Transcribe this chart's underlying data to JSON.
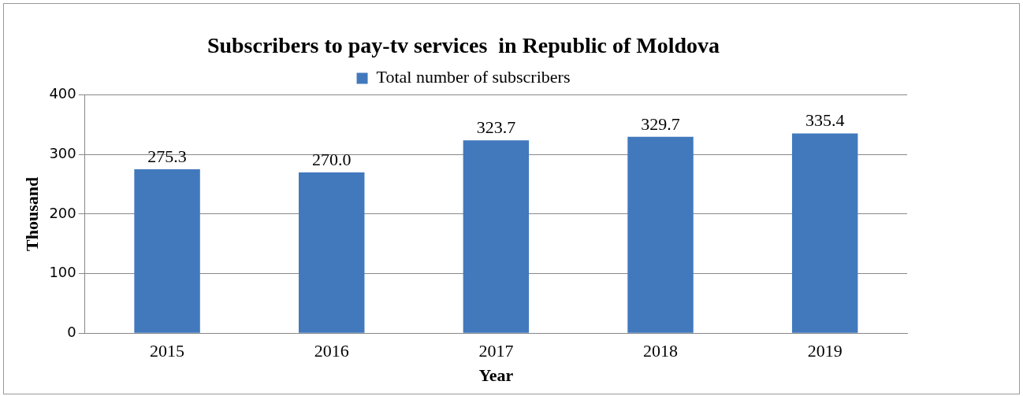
{
  "chart_data": {
    "type": "bar",
    "title": "Subscribers to pay-tv services  in Republic of Moldova",
    "xlabel": "Year",
    "ylabel": "Thousand",
    "categories": [
      "2015",
      "2016",
      "2017",
      "2018",
      "2019"
    ],
    "series": [
      {
        "name": "Total number of subscribers",
        "color": "#4279bd",
        "values": [
          275.3,
          270.0,
          323.7,
          329.7,
          335.4
        ]
      }
    ],
    "value_labels": [
      "275.3",
      "270.0",
      "323.7",
      "329.7",
      "335.4"
    ],
    "ylim": [
      0,
      400
    ],
    "yticks": [
      0,
      100,
      200,
      300,
      400
    ],
    "grid": "y",
    "legend": "top"
  }
}
